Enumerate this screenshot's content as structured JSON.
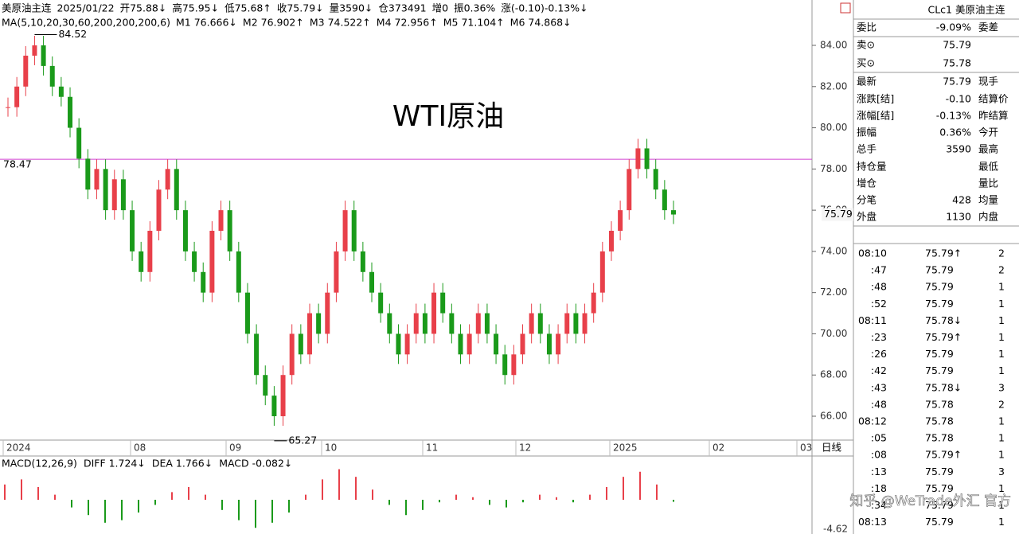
{
  "header": {
    "line1": [
      {
        "text": "美原油主连",
        "color": "#000"
      },
      {
        "text": "2025/01/22",
        "color": "#000"
      },
      {
        "text": "开75.88↓",
        "color": "#1a8a1a"
      },
      {
        "text": "高75.95↓",
        "color": "#e0302a"
      },
      {
        "text": "低75.68↑",
        "color": "#1a8a1a"
      },
      {
        "text": "收75.79↓",
        "color": "#1a8a1a"
      },
      {
        "text": "量3590↓",
        "color": "#1a8a1a"
      },
      {
        "text": "仓373491",
        "color": "#000"
      },
      {
        "text": "增0",
        "color": "#000"
      },
      {
        "text": "振0.36%",
        "color": "#000"
      },
      {
        "text": "涨(-0.10)-0.13%↓",
        "color": "#1a8a1a"
      }
    ],
    "line2": [
      {
        "text": "MA(5,10,20,30,60,200,200,200,6)",
        "color": "#000"
      },
      {
        "text": "M1 76.666↓",
        "color": "#1c2fc4"
      },
      {
        "text": "M2 76.902↑",
        "color": "#e07020"
      },
      {
        "text": "M3 74.522↑",
        "color": "#888"
      },
      {
        "text": "M4 72.956↑",
        "color": "#a01010"
      },
      {
        "text": "M5 71.104↑",
        "color": "#1a8a1a"
      },
      {
        "text": "M6 74.868↓",
        "color": "#20c8e0"
      }
    ]
  },
  "chart_data": {
    "type": "candlestick",
    "title": "WTI原油",
    "title_color": "#e8505a",
    "closes": [
      81,
      82,
      83.5,
      84,
      83,
      82,
      81.5,
      80,
      78.5,
      77,
      78,
      76,
      77.5,
      76,
      74,
      73,
      75,
      77,
      78,
      76,
      74,
      73,
      72,
      75,
      76,
      74,
      72,
      70,
      68,
      67,
      66,
      68,
      70,
      69,
      71,
      70,
      72,
      74,
      76,
      74,
      73,
      72,
      71,
      70,
      69,
      70,
      71,
      70,
      72,
      71,
      70,
      69,
      70,
      71,
      70,
      69,
      68,
      69,
      70,
      71,
      70,
      69,
      70,
      71,
      70,
      71,
      72,
      74,
      75,
      76,
      78,
      79,
      78,
      77,
      76,
      75.79
    ],
    "up_color": "#e8404a",
    "down_color": "#1a9a1a",
    "ylim": [
      64.7,
      86.1
    ],
    "yticks": [
      {
        "value": 66,
        "label": "66.00"
      },
      {
        "value": 68,
        "label": "68.00"
      },
      {
        "value": 70,
        "label": "70.00"
      },
      {
        "value": 72,
        "label": "72.00"
      },
      {
        "value": 74,
        "label": "74.00"
      },
      {
        "value": 76,
        "label": "76.00"
      },
      {
        "value": 78,
        "label": "78.00"
      },
      {
        "value": 80,
        "label": "80.00"
      },
      {
        "value": 82,
        "label": "82.00"
      },
      {
        "value": 84,
        "label": "84.00"
      }
    ],
    "x_labels": [
      "2024",
      "08",
      "09",
      "10",
      "11",
      "12",
      "2025",
      "02",
      "03"
    ],
    "period": "日线",
    "high": 84.52,
    "low": 65.27,
    "level": 78.47,
    "last": 75.79
  },
  "macd": {
    "title": "MACD(12,26,9)",
    "diff": "DIFF 1.724↓",
    "dea": "DEA 1.766↓",
    "macd": "MACD -0.082↓",
    "histogram": [
      0.6,
      0.8,
      0.5,
      0.2,
      -0.3,
      -0.6,
      -0.9,
      -0.8,
      -0.5,
      -0.2,
      0.3,
      0.5,
      0.2,
      -0.4,
      -0.8,
      -1.1,
      -0.9,
      -0.5,
      0.2,
      0.8,
      1.2,
      0.9,
      0.4,
      -0.2,
      -0.6,
      -0.4,
      -0.1,
      0.2,
      0.1,
      -0.2,
      -0.3,
      -0.1,
      0.2,
      0.1,
      -0.1,
      0.2,
      0.5,
      0.9,
      1.1,
      0.6,
      -0.08
    ],
    "ylim": [
      -4.62,
      4.62
    ],
    "yticks": [
      -4.62
    ]
  },
  "panel": {
    "symbol": "CLc1",
    "name": "美原油主连",
    "rows": [
      [
        "委比",
        "-9.09%",
        "委差"
      ],
      [
        "卖⊙",
        "75.79",
        ""
      ],
      [
        "买⊙",
        "75.78",
        ""
      ],
      [
        "最新",
        "75.79",
        "现手"
      ],
      [
        "涨跌[结]",
        "-0.10",
        "结算价"
      ],
      [
        "涨幅[结]",
        "-0.13%",
        "昨结算"
      ],
      [
        "振幅",
        "0.36%",
        "今开"
      ],
      [
        "总手",
        "3590",
        "最高"
      ],
      [
        "持仓量",
        "",
        "最低"
      ],
      [
        "增仓",
        "",
        "量比"
      ],
      [
        "分笔",
        "428",
        "均量"
      ],
      [
        "外盘",
        "1130",
        "内盘"
      ]
    ],
    "ticks": [
      [
        "08:10",
        "75.79↑",
        "2"
      ],
      [
        ":47",
        "75.79",
        "2"
      ],
      [
        ":48",
        "75.79",
        "1"
      ],
      [
        ":52",
        "75.79",
        "1"
      ],
      [
        "08:11",
        "75.78↓",
        "1"
      ],
      [
        ":23",
        "75.79↑",
        "1"
      ],
      [
        ":26",
        "75.79",
        "1"
      ],
      [
        ":42",
        "75.79",
        "1"
      ],
      [
        ":43",
        "75.78↓",
        "3"
      ],
      [
        ":48",
        "75.78",
        "2"
      ],
      [
        "08:12",
        "75.78",
        "1"
      ],
      [
        ":05",
        "75.78",
        "1"
      ],
      [
        ":08",
        "75.79↑",
        "1"
      ],
      [
        ":13",
        "75.79",
        "3"
      ],
      [
        ":18",
        "75.79",
        "1"
      ],
      [
        ":34",
        "75.79",
        "1"
      ],
      [
        "08:13",
        "75.79",
        "1"
      ]
    ]
  },
  "watermark": "知乎 @WeTrade外汇 官方"
}
